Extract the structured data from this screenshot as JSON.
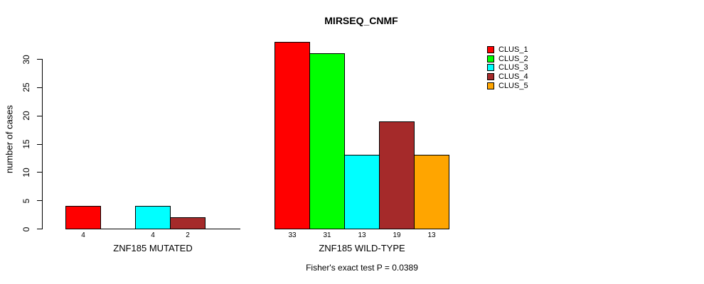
{
  "chart_data": {
    "type": "bar",
    "title": "MIRSEQ_CNMF",
    "ylabel": "number of cases",
    "xlabel": "",
    "yticks": [
      0,
      5,
      10,
      15,
      20,
      25,
      30
    ],
    "ylim": [
      0,
      33.5
    ],
    "grid": false,
    "legend_position": "right",
    "axis_color": "#000000",
    "series": [
      {
        "name": "CLUS_1",
        "color": "#FF0000"
      },
      {
        "name": "CLUS_2",
        "color": "#00FF00"
      },
      {
        "name": "CLUS_3",
        "color": "#00FFFF"
      },
      {
        "name": "CLUS_4",
        "color": "#A52A2A"
      },
      {
        "name": "CLUS_5",
        "color": "#FFA500"
      }
    ],
    "groups": [
      {
        "label": "ZNF185 MUTATED",
        "values": [
          4,
          0,
          4,
          2,
          0
        ],
        "bar_labels": [
          "4",
          "",
          "4",
          "2",
          ""
        ]
      },
      {
        "label": "ZNF185 WILD-TYPE",
        "values": [
          33,
          31,
          13,
          19,
          13
        ],
        "bar_labels": [
          "33",
          "31",
          "13",
          "19",
          "13"
        ]
      }
    ],
    "footnote": "Fisher's exact test P = 0.0389"
  }
}
